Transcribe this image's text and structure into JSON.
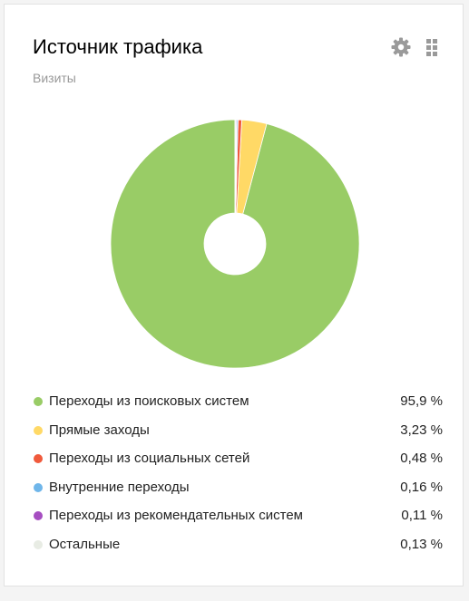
{
  "widget": {
    "title": "Источник трафика",
    "subtitle": "Визиты",
    "settings_icon": "gear-icon",
    "drag_icon": "grip-icon"
  },
  "chart_data": {
    "type": "pie",
    "donut": true,
    "start_angle_deg": 0,
    "direction": "counterclockwise",
    "series": [
      {
        "label": "Переходы из поисковых систем",
        "value": 95.9,
        "value_label": "95,9 %",
        "color": "#99cc66"
      },
      {
        "label": "Прямые заходы",
        "value": 3.23,
        "value_label": "3,23 %",
        "color": "#ffd966"
      },
      {
        "label": "Переходы из социальных сетей",
        "value": 0.48,
        "value_label": "0,48 %",
        "color": "#f05a3c"
      },
      {
        "label": "Внутренние переходы",
        "value": 0.16,
        "value_label": "0,16 %",
        "color": "#6fb6ea"
      },
      {
        "label": "Переходы из рекомендательных систем",
        "value": 0.11,
        "value_label": "0,11 %",
        "color": "#a64ec1"
      },
      {
        "label": "Остальные",
        "value": 0.13,
        "value_label": "0,13 %",
        "color": "#e8ece4"
      }
    ]
  }
}
